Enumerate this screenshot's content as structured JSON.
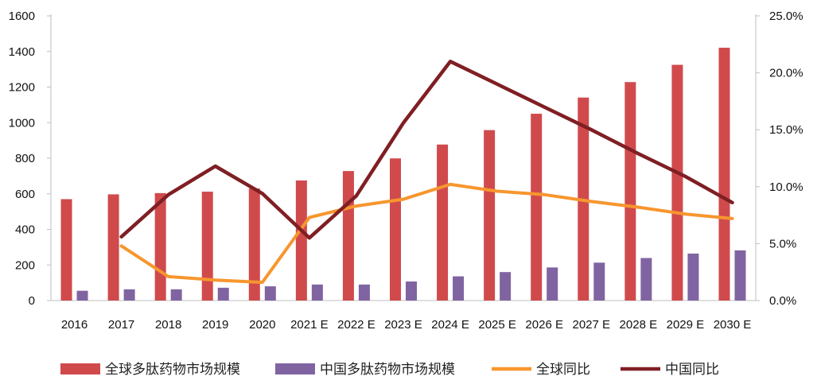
{
  "chart_data": {
    "type": "bar",
    "categories": [
      "2016",
      "2017",
      "2018",
      "2019",
      "2020",
      "2021E",
      "2022E",
      "2023E",
      "2024E",
      "2025E",
      "2026E",
      "2027E",
      "2028E",
      "2029E",
      "2030E"
    ],
    "category_display": [
      "2016",
      "2017",
      "2018",
      "2019",
      "2020",
      "2021 E",
      "2022 E",
      "2023 E",
      "2024 E",
      "2025 E",
      "2026 E",
      "2027 E",
      "2028 E",
      "2029 E",
      "2030 E"
    ],
    "y_left": {
      "ylim": [
        0,
        1600
      ],
      "ticks": [
        "0",
        "200",
        "400",
        "600",
        "800",
        "1000",
        "1200",
        "1400",
        "1600"
      ]
    },
    "y_right": {
      "ylim": [
        0,
        25
      ],
      "ticks": [
        "0.0%",
        "5.0%",
        "10.0%",
        "15.0%",
        "20.0%",
        "25.0%"
      ]
    },
    "series": [
      {
        "name": "全球多肽药物市场规模",
        "kind": "bar",
        "axis": "left",
        "color": "#d04a4c",
        "values": [
          570,
          597,
          604,
          612,
          630,
          675,
          728,
          799,
          877,
          958,
          1050,
          1141,
          1228,
          1325,
          1421
        ]
      },
      {
        "name": "中国多肽药物市场规模",
        "kind": "bar",
        "axis": "left",
        "color": "#8064a2",
        "values": [
          55,
          63,
          63,
          72,
          80,
          90,
          90,
          107,
          136,
          160,
          186,
          213,
          239,
          264,
          282
        ]
      },
      {
        "name": "全球同比",
        "kind": "line",
        "axis": "right",
        "color": "#f7962e",
        "values": [
          null,
          4.8,
          2.1,
          1.8,
          1.6,
          7.3,
          8.3,
          8.9,
          10.2,
          9.6,
          9.3,
          8.7,
          8.2,
          7.6,
          7.2
        ]
      },
      {
        "name": "中国同比",
        "kind": "line",
        "axis": "right",
        "color": "#7f1f24",
        "values": [
          null,
          5.6,
          9.3,
          11.8,
          9.4,
          5.5,
          9.2,
          15.6,
          21.0,
          19.0,
          17.0,
          15.0,
          12.9,
          10.9,
          8.6
        ]
      }
    ],
    "legend_position": "bottom",
    "grid": false
  }
}
